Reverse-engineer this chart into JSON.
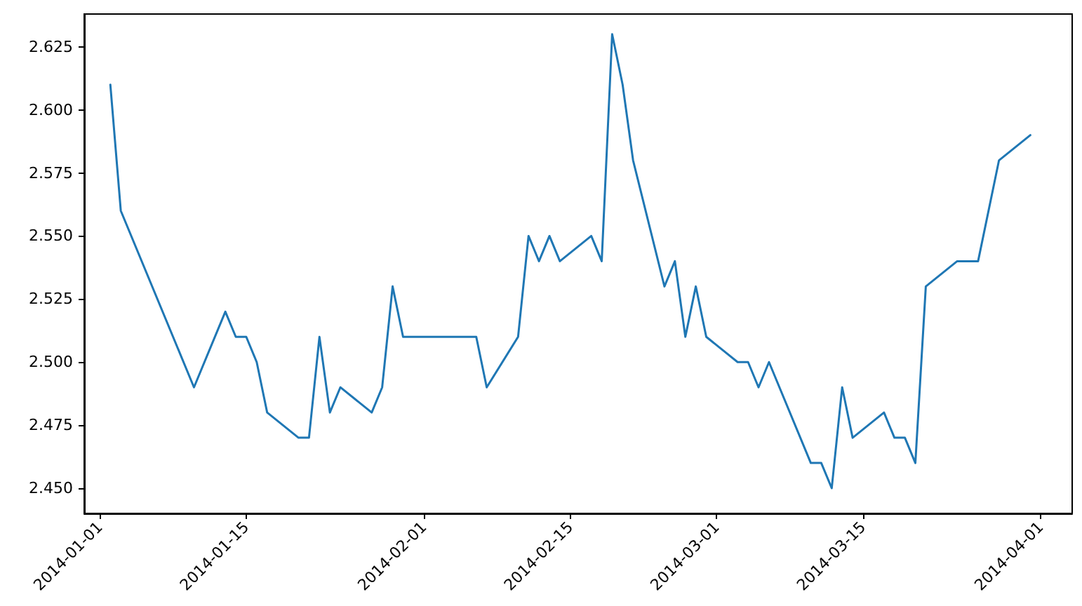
{
  "chart_data": {
    "type": "line",
    "line_style": "solid",
    "marker": "none",
    "grid": false,
    "legend": false,
    "x": [
      "2014-01-02",
      "2014-01-03",
      "2014-01-10",
      "2014-01-13",
      "2014-01-14",
      "2014-01-15",
      "2014-01-16",
      "2014-01-17",
      "2014-01-20",
      "2014-01-21",
      "2014-01-22",
      "2014-01-23",
      "2014-01-24",
      "2014-01-27",
      "2014-01-28",
      "2014-01-29",
      "2014-01-30",
      "2014-02-06",
      "2014-02-07",
      "2014-02-10",
      "2014-02-11",
      "2014-02-12",
      "2014-02-13",
      "2014-02-14",
      "2014-02-17",
      "2014-02-18",
      "2014-02-19",
      "2014-02-20",
      "2014-02-21",
      "2014-02-24",
      "2014-02-25",
      "2014-02-26",
      "2014-02-27",
      "2014-02-28",
      "2014-03-03",
      "2014-03-04",
      "2014-03-05",
      "2014-03-06",
      "2014-03-10",
      "2014-03-11",
      "2014-03-12",
      "2014-03-13",
      "2014-03-14",
      "2014-03-17",
      "2014-03-18",
      "2014-03-19",
      "2014-03-20",
      "2014-03-21",
      "2014-03-24",
      "2014-03-26",
      "2014-03-28",
      "2014-03-31"
    ],
    "series": [
      {
        "color": "#1f77b4",
        "values": [
          2.61,
          2.56,
          2.49,
          2.52,
          2.51,
          2.51,
          2.5,
          2.48,
          2.47,
          2.47,
          2.51,
          2.48,
          2.49,
          2.48,
          2.49,
          2.53,
          2.51,
          2.51,
          2.49,
          2.51,
          2.55,
          2.54,
          2.55,
          2.54,
          2.55,
          2.54,
          2.63,
          2.61,
          2.58,
          2.53,
          2.54,
          2.51,
          2.53,
          2.51,
          2.5,
          2.5,
          2.49,
          2.5,
          2.46,
          2.46,
          2.45,
          2.49,
          2.47,
          2.48,
          2.47,
          2.47,
          2.46,
          2.53,
          2.54,
          2.54,
          2.58,
          2.59
        ]
      }
    ],
    "xlim": [
      "2013-12-30T12:00",
      "2014-04-04T00:00"
    ],
    "xticks": [
      "2014-01-01",
      "2014-01-15",
      "2014-02-01",
      "2014-02-15",
      "2014-03-01",
      "2014-03-15",
      "2014-04-01"
    ],
    "ylim": [
      2.44,
      2.638
    ],
    "yticks": [
      {
        "value": 2.45,
        "label": "2.450"
      },
      2.475,
      {
        "value": 2.5,
        "label": "2.500"
      },
      2.525,
      {
        "value": 2.55,
        "label": "2.550"
      },
      2.575,
      {
        "value": 2.6,
        "label": "2.600"
      },
      2.625
    ]
  }
}
